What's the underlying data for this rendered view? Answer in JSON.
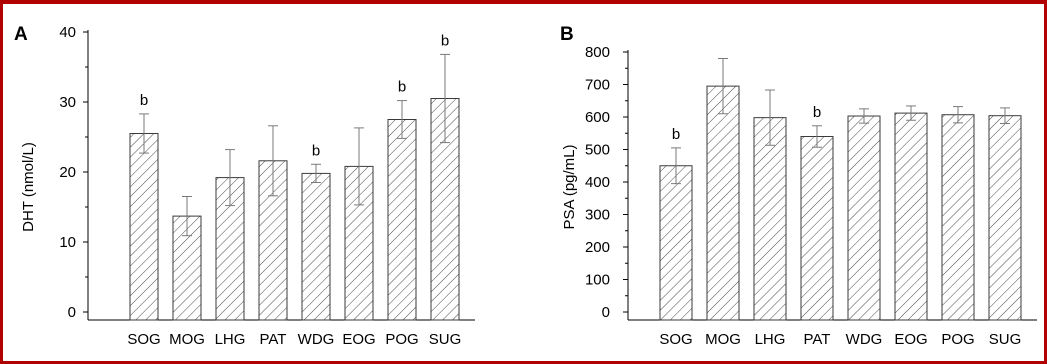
{
  "colors": {
    "frame": "#b00000",
    "bar_stroke": "#3a3a3a",
    "hatch": "#4a4a4a",
    "error_bar": "#7a7a7a"
  },
  "chart_data": [
    {
      "type": "bar",
      "panel_label": "A",
      "categories": [
        "SOG",
        "MOG",
        "LHG",
        "PAT",
        "WDG",
        "EOG",
        "POG",
        "SUG"
      ],
      "values": [
        25.5,
        13.7,
        19.2,
        21.6,
        19.8,
        20.8,
        27.5,
        30.5
      ],
      "errors": [
        2.8,
        2.8,
        4.0,
        5.0,
        1.3,
        5.5,
        2.7,
        6.3
      ],
      "significance": [
        "b",
        "",
        "",
        "",
        "b",
        "",
        "b",
        "b"
      ],
      "xlabel": "",
      "ylabel": "DHT (nmol/L)",
      "ylim": [
        0,
        40
      ],
      "yticks": [
        0,
        10,
        20,
        30,
        40
      ],
      "grid": false,
      "fill": "diagonal-hatch"
    },
    {
      "type": "bar",
      "panel_label": "B",
      "categories": [
        "SOG",
        "MOG",
        "LHG",
        "PAT",
        "WDG",
        "EOG",
        "POG",
        "SUG"
      ],
      "values": [
        450,
        695,
        598,
        540,
        603,
        612,
        607,
        604
      ],
      "errors": [
        55,
        85,
        85,
        33,
        22,
        22,
        25,
        24
      ],
      "significance": [
        "b",
        "",
        "",
        "b",
        "",
        "",
        "",
        ""
      ],
      "xlabel": "",
      "ylabel": "PSA (pg/mL)",
      "ylim": [
        0,
        800
      ],
      "yticks": [
        0,
        100,
        200,
        300,
        400,
        500,
        600,
        700,
        800
      ],
      "grid": false,
      "fill": "diagonal-hatch"
    }
  ]
}
